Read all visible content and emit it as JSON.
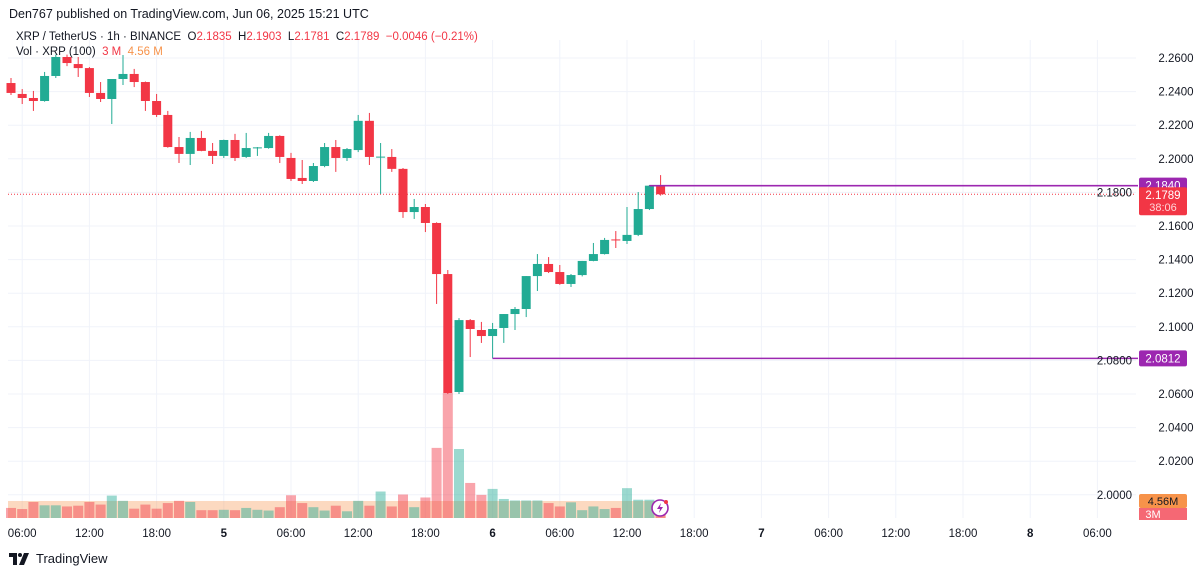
{
  "header": {
    "published": "Den767 published on TradingView.com, Jun 06, 2025 15:21 UTC",
    "symbol": "XRP / TetherUS · 1h · BINANCE",
    "o_label": "O",
    "o": "2.1835",
    "h_label": "H",
    "h": "2.1903",
    "l_label": "L",
    "l": "2.1781",
    "c_label": "C",
    "c": "2.1789",
    "change": "−0.0046 (−0.21%)",
    "vol_label": "Vol · XRP (100)",
    "vol_value": "3 M",
    "vol_ma": "4.56 M"
  },
  "footer": {
    "brand": "TradingView",
    "logo_icon": "tradingview-logo-icon"
  },
  "colors": {
    "up": "#22ab94",
    "down": "#f23645",
    "level": "#9c27b0",
    "volume_ma": "#f7934a",
    "grid": "#f0f3fa"
  },
  "chart_data": {
    "type": "candlestick",
    "symbol": "XRP/USDT",
    "interval": "1h",
    "ylim": [
      1.99,
      2.275
    ],
    "y_ticks": [
      "2.2600",
      "2.2400",
      "2.2200",
      "2.2000",
      "2.1800",
      "2.1600",
      "2.1400",
      "2.1200",
      "2.1000",
      "2.0800",
      "2.0600",
      "2.0400",
      "2.0200",
      "2.0000"
    ],
    "x_ticks": [
      {
        "label": "06:00",
        "bold": false
      },
      {
        "label": "12:00",
        "bold": false
      },
      {
        "label": "18:00",
        "bold": false
      },
      {
        "label": "5",
        "bold": true
      },
      {
        "label": "06:00",
        "bold": false
      },
      {
        "label": "12:00",
        "bold": false
      },
      {
        "label": "18:00",
        "bold": false
      },
      {
        "label": "6",
        "bold": true
      },
      {
        "label": "06:00",
        "bold": false
      },
      {
        "label": "12:00",
        "bold": false
      },
      {
        "label": "18:00",
        "bold": false
      },
      {
        "label": "7",
        "bold": true
      },
      {
        "label": "06:00",
        "bold": false
      },
      {
        "label": "12:00",
        "bold": false
      },
      {
        "label": "18:00",
        "bold": false
      },
      {
        "label": "8",
        "bold": true
      },
      {
        "label": "06:00",
        "bold": false
      }
    ],
    "candle_fields": [
      "time",
      "open",
      "high",
      "low",
      "close",
      "volume_M"
    ],
    "candles": [
      [
        "Jun 4 05:00",
        2.2451,
        2.2481,
        2.238,
        2.2392,
        2.7
      ],
      [
        "Jun 4 06:00",
        2.2386,
        2.2415,
        2.2326,
        2.2362,
        2.4
      ],
      [
        "Jun 4 07:00",
        2.2362,
        2.2404,
        2.2285,
        2.2344,
        4.3
      ],
      [
        "Jun 4 08:00",
        2.2344,
        2.2517,
        2.234,
        2.2493,
        3.4
      ],
      [
        "Jun 4 09:00",
        2.2493,
        2.262,
        2.2481,
        2.2606,
        3.4
      ],
      [
        "Jun 4 10:00",
        2.2606,
        2.262,
        2.2552,
        2.257,
        3.1
      ],
      [
        "Jun 4 11:00",
        2.2564,
        2.2606,
        2.2487,
        2.254,
        3.3
      ],
      [
        "Jun 4 12:00",
        2.254,
        2.2546,
        2.2368,
        2.2392,
        4.3
      ],
      [
        "Jun 4 13:00",
        2.2392,
        2.2457,
        2.2338,
        2.2356,
        3.6
      ],
      [
        "Jun 4 14:00",
        2.2356,
        2.2475,
        2.2207,
        2.2475,
        6.0
      ],
      [
        "Jun 4 15:00",
        2.2475,
        2.2618,
        2.2439,
        2.2505,
        4.6
      ],
      [
        "Jun 4 16:00",
        2.2505,
        2.2535,
        2.2427,
        2.2457,
        2.5
      ],
      [
        "Jun 4 17:00",
        2.2457,
        2.246,
        2.2285,
        2.2344,
        3.6
      ],
      [
        "Jun 4 18:00",
        2.2344,
        2.2386,
        2.2249,
        2.2261,
        2.5
      ],
      [
        "Jun 4 19:00",
        2.2261,
        2.2285,
        2.2066,
        2.207,
        4.0
      ],
      [
        "Jun 4 20:00",
        2.207,
        2.213,
        2.1975,
        2.2029,
        4.6
      ],
      [
        "Jun 4 21:00",
        2.2029,
        2.216,
        2.1963,
        2.2124,
        4.3
      ],
      [
        "Jun 4 22:00",
        2.2124,
        2.2166,
        2.2045,
        2.2047,
        2.1
      ],
      [
        "Jun 4 23:00",
        2.2047,
        2.2094,
        2.1969,
        2.2017,
        2.1
      ],
      [
        "Jun 5 00:00",
        2.2017,
        2.2114,
        2.2005,
        2.2112,
        2.2
      ],
      [
        "Jun 5 01:00",
        2.2112,
        2.2148,
        2.1987,
        2.2005,
        2.1
      ],
      [
        "Jun 5 02:00",
        2.2011,
        2.2154,
        2.2005,
        2.2064,
        2.7
      ],
      [
        "Jun 5 03:00",
        2.2064,
        2.207,
        2.2017,
        2.2068,
        2.2
      ],
      [
        "Jun 5 04:00",
        2.2064,
        2.2154,
        2.206,
        2.2136,
        2.0
      ],
      [
        "Jun 5 05:00",
        2.2136,
        2.214,
        2.1975,
        2.2011,
        2.9
      ],
      [
        "Jun 5 06:00",
        2.2005,
        2.2035,
        2.1868,
        2.188,
        6.1
      ],
      [
        "Jun 5 07:00",
        2.1886,
        2.1993,
        2.185,
        2.1868,
        4.0
      ],
      [
        "Jun 5 08:00",
        2.1868,
        2.1975,
        2.1862,
        2.1957,
        2.9
      ],
      [
        "Jun 5 09:00",
        2.1957,
        2.2094,
        2.195,
        2.207,
        2.0
      ],
      [
        "Jun 5 10:00",
        2.207,
        2.2112,
        2.1922,
        2.2005,
        3.3
      ],
      [
        "Jun 5 11:00",
        2.2005,
        2.2064,
        2.1987,
        2.2058,
        1.8
      ],
      [
        "Jun 5 12:00",
        2.2052,
        2.2261,
        2.204,
        2.2226,
        4.6
      ],
      [
        "Jun 5 13:00",
        2.2226,
        2.2273,
        2.1963,
        2.2011,
        3.3
      ],
      [
        "Jun 5 14:00",
        2.2011,
        2.2094,
        2.179,
        2.2013,
        7.1
      ],
      [
        "Jun 5 15:00",
        2.2011,
        2.2058,
        2.1922,
        2.194,
        3.1
      ],
      [
        "Jun 5 16:00",
        2.194,
        2.1945,
        2.1648,
        2.1683,
        6.3
      ],
      [
        "Jun 5 17:00",
        2.1683,
        2.1761,
        2.1642,
        2.1713,
        2.9
      ],
      [
        "Jun 5 18:00",
        2.1713,
        2.1731,
        2.1564,
        2.1618,
        5.5
      ],
      [
        "Jun 5 19:00",
        2.1618,
        2.1622,
        2.1136,
        2.1314,
        18.8
      ],
      [
        "Jun 5 20:00",
        2.1314,
        2.1338,
        2.06,
        2.0606,
        33.5
      ],
      [
        "Jun 5 21:00",
        2.0612,
        2.1052,
        2.06,
        2.104,
        18.5
      ],
      [
        "Jun 5 22:00",
        2.104,
        2.1046,
        2.082,
        2.0987,
        9.4
      ],
      [
        "Jun 5 23:00",
        2.0981,
        2.1029,
        2.0904,
        2.0945,
        6.2
      ],
      [
        "Jun 6 00:00",
        2.0945,
        2.1023,
        2.0812,
        2.0987,
        7.8
      ],
      [
        "Jun 6 01:00",
        2.0993,
        2.1076,
        2.0904,
        2.1076,
        5.1
      ],
      [
        "Jun 6 02:00",
        2.1076,
        2.1118,
        2.0981,
        2.1106,
        4.7
      ],
      [
        "Jun 6 03:00",
        2.1106,
        2.1302,
        2.1058,
        2.1302,
        4.7
      ],
      [
        "Jun 6 04:00",
        2.1302,
        2.1433,
        2.1213,
        2.1374,
        4.7
      ],
      [
        "Jun 6 05:00",
        2.1374,
        2.1415,
        2.132,
        2.1326,
        4.0
      ],
      [
        "Jun 6 06:00",
        2.1326,
        2.1368,
        2.125,
        2.1255,
        3.1
      ],
      [
        "Jun 6 07:00",
        2.1255,
        2.1314,
        2.1237,
        2.1308,
        4.2
      ],
      [
        "Jun 6 08:00",
        2.1308,
        2.1392,
        2.13,
        2.1392,
        2.1
      ],
      [
        "Jun 6 09:00",
        2.1392,
        2.1499,
        2.139,
        2.1433,
        3.1
      ],
      [
        "Jun 6 10:00",
        2.1433,
        2.1529,
        2.143,
        2.1517,
        2.4
      ],
      [
        "Jun 6 11:00",
        2.152,
        2.157,
        2.1469,
        2.1514,
        2.7
      ],
      [
        "Jun 6 12:00",
        2.1511,
        2.1713,
        2.1493,
        2.1547,
        8.0
      ],
      [
        "Jun 6 13:00",
        2.1547,
        2.1802,
        2.154,
        2.1701,
        4.9
      ],
      [
        "Jun 6 14:00",
        2.1701,
        2.1844,
        2.1695,
        2.184,
        4.9
      ],
      [
        "Jun 6 15:00",
        2.1835,
        2.1903,
        2.1781,
        2.1789,
        3.0
      ]
    ],
    "volume_ma_M": 4.56,
    "levels": [
      {
        "price": 2.184,
        "label": "2.1840",
        "from": "Jun 6 14:00"
      },
      {
        "price": 2.0812,
        "label": "2.0812",
        "from": "Jun 6 00:00"
      }
    ],
    "last_price": {
      "price": 2.1789,
      "label": "2.1789",
      "countdown": "38:06"
    },
    "volume_labels": {
      "ma": "4.56M",
      "last": "3M"
    }
  }
}
